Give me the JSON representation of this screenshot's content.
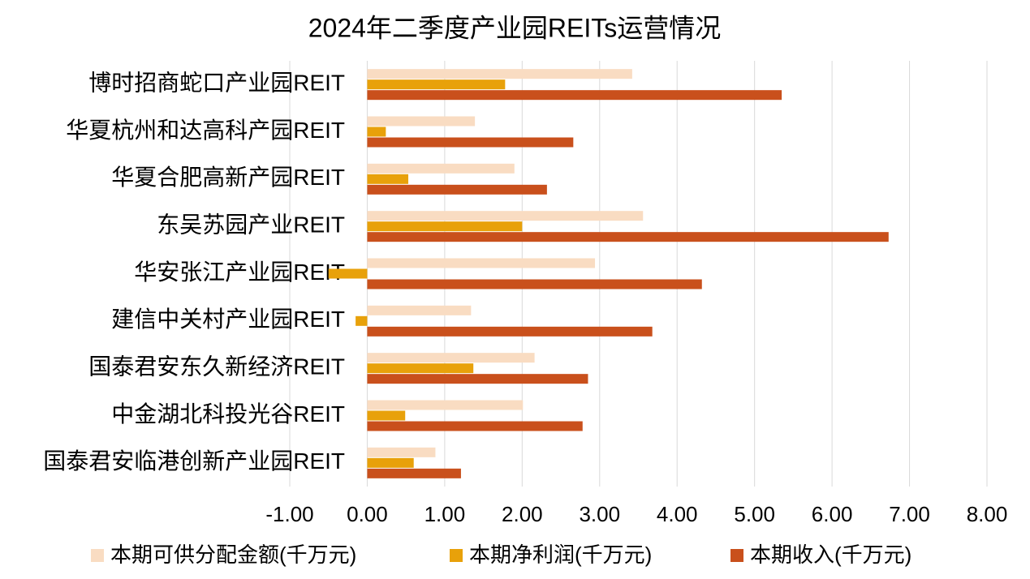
{
  "chart_data": {
    "type": "bar",
    "orientation": "horizontal",
    "title": "2024年二季度产业园REITs运营情况",
    "categories": [
      "博时招商蛇口产业园REIT",
      "华夏杭州和达高科产园REIT",
      "华夏合肥高新产园REIT",
      "东吴苏园产业REIT",
      "华安张江产业园REIT",
      "建信中关村产业园REIT",
      "国泰君安东久新经济REIT",
      "中金湖北科投光谷REIT",
      "国泰君安临港创新产业园REIT"
    ],
    "series": [
      {
        "name": "本期可供分配金额(千万元)",
        "color": "#f9dcc2",
        "values": [
          3.42,
          1.39,
          1.9,
          3.56,
          2.94,
          1.34,
          2.16,
          2.01,
          0.88
        ]
      },
      {
        "name": "本期净利润(千万元)",
        "color": "#e8a10a",
        "values": [
          1.78,
          0.24,
          0.53,
          2.0,
          -0.5,
          -0.15,
          1.37,
          0.49,
          0.6
        ]
      },
      {
        "name": "本期收入(千万元)",
        "color": "#c9501c",
        "values": [
          5.35,
          2.66,
          2.32,
          6.73,
          4.32,
          3.68,
          2.85,
          2.78,
          1.21
        ]
      }
    ],
    "xlim": [
      -1,
      8
    ],
    "xticks": [
      {
        "value": -1,
        "label": "-1.00"
      },
      {
        "value": 0,
        "label": "0.00"
      },
      {
        "value": 1,
        "label": "1.00"
      },
      {
        "value": 2,
        "label": "2.00"
      },
      {
        "value": 3,
        "label": "3.00"
      },
      {
        "value": 4,
        "label": "4.00"
      },
      {
        "value": 5,
        "label": "5.00"
      },
      {
        "value": 6,
        "label": "6.00"
      },
      {
        "value": 7,
        "label": "7.00"
      },
      {
        "value": 8,
        "label": "8.00"
      }
    ],
    "grid": true,
    "legend": "bottom"
  }
}
